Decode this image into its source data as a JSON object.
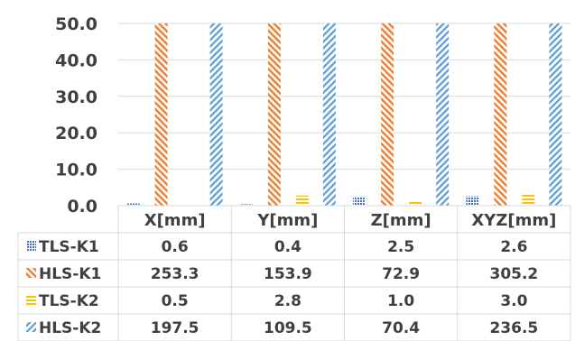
{
  "colors": {
    "tls_k1": "#4472C4",
    "hls_k1": "#ED7D31",
    "tls_k2": "#FFC000",
    "hls_k2": "#5B9BD5",
    "grid": "#D9D9D9",
    "text": "#404040"
  },
  "chart_data": {
    "type": "bar",
    "title": "",
    "xlabel": "",
    "ylabel": "",
    "categories": [
      "X[mm]",
      "Y[mm]",
      "Z[mm]",
      "XYZ[mm]"
    ],
    "ylim": [
      0,
      50
    ],
    "yticks": [
      "0.0",
      "10.0",
      "20.0",
      "30.0",
      "40.0",
      "50.0"
    ],
    "grid": true,
    "legend": "data-table",
    "series": [
      {
        "name": "TLS-K1",
        "pattern": "dots",
        "values": [
          0.6,
          0.4,
          2.5,
          2.6
        ],
        "labels": [
          "0.6",
          "0.4",
          "2.5",
          "2.6"
        ]
      },
      {
        "name": "HLS-K1",
        "pattern": "wide-downward-diagonal",
        "values": [
          253.3,
          153.9,
          72.9,
          305.2
        ],
        "labels": [
          "253.3",
          "153.9",
          "72.9",
          "305.2"
        ]
      },
      {
        "name": "TLS-K2",
        "pattern": "horizontal-lines",
        "values": [
          0.5,
          2.8,
          1.0,
          3.0
        ],
        "labels": [
          "0.5",
          "2.8",
          "1.0",
          "3.0"
        ]
      },
      {
        "name": "HLS-K2",
        "pattern": "wide-upward-diagonal",
        "values": [
          197.5,
          109.5,
          70.4,
          236.5
        ],
        "labels": [
          "197.5",
          "109.5",
          "70.4",
          "236.5"
        ]
      }
    ]
  }
}
